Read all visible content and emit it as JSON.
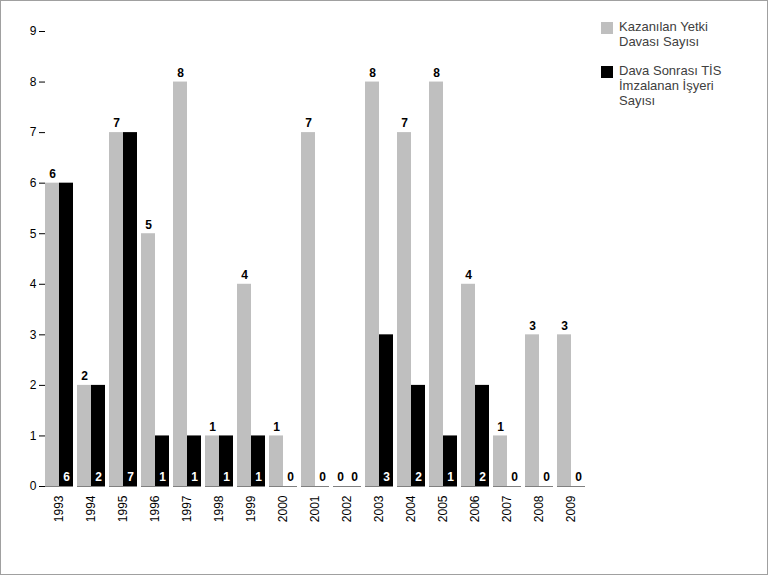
{
  "chart_data": {
    "type": "bar",
    "categories": [
      "1993",
      "1994",
      "1995",
      "1996",
      "1997",
      "1998",
      "1999",
      "2000",
      "2001",
      "2002",
      "2003",
      "2004",
      "2005",
      "2006",
      "2007",
      "2008",
      "2009"
    ],
    "series": [
      {
        "name": "Kazanılan Yetki Davası Sayısı",
        "color": "#bfbfbf",
        "values": [
          6,
          2,
          7,
          5,
          8,
          1,
          4,
          1,
          7,
          0,
          8,
          7,
          8,
          4,
          1,
          3,
          3
        ]
      },
      {
        "name": "Dava Sonrası TİS İmzalanan İşyeri Sayısı",
        "color": "#000000",
        "values": [
          6,
          2,
          7,
          1,
          1,
          1,
          1,
          0,
          0,
          0,
          3,
          2,
          1,
          2,
          0,
          0,
          0
        ]
      }
    ],
    "ylim": [
      0,
      9
    ],
    "yticks": [
      0,
      1,
      2,
      3,
      4,
      5,
      6,
      7,
      8,
      9
    ],
    "grid": false,
    "legend": "right",
    "data_labels": true
  }
}
